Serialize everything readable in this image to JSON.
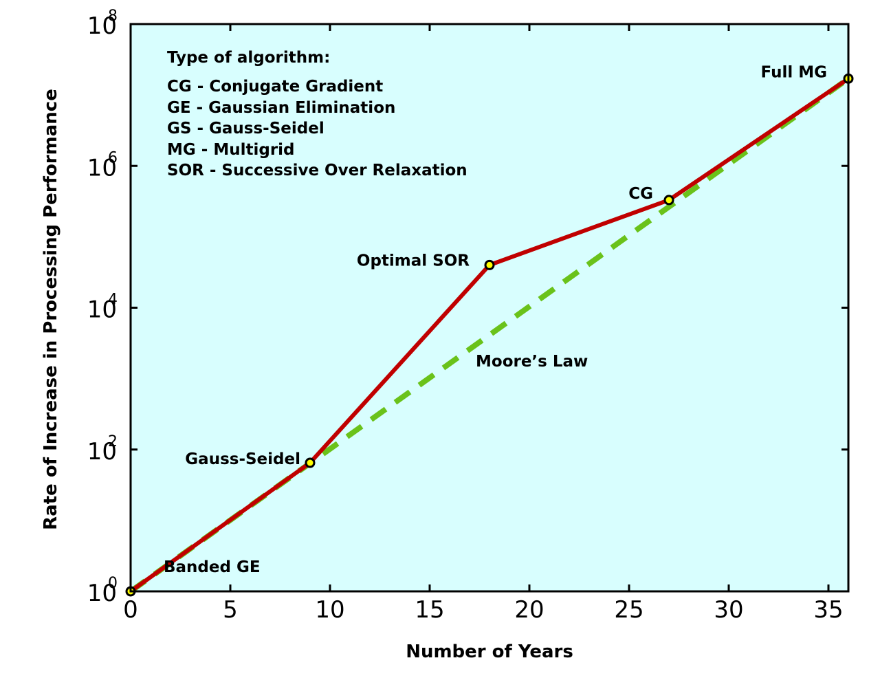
{
  "colors": {
    "plot_background": "#d8fefe",
    "algorithm_line": "#c00000",
    "moores_law_line": "#6ac21a",
    "marker_fill": "#ffff00",
    "marker_edge": "#000000"
  },
  "legend": {
    "heading": "Type of algorithm:",
    "entries": [
      "CG - Conjugate Gradient",
      "GE - Gaussian Elimination",
      "GS - Gauss-Seidel",
      "MG - Multigrid",
      "SOR - Successive Over Relaxation"
    ]
  },
  "chart_data": {
    "type": "line",
    "title": "",
    "xlabel": "Number of Years",
    "ylabel": "Rate of Increase in Processing Performance",
    "xlim": [
      0,
      36
    ],
    "ylim": [
      1,
      100000000
    ],
    "yscale": "log",
    "grid": false,
    "x_ticks": [
      0,
      5,
      10,
      15,
      20,
      25,
      30,
      35
    ],
    "x_tick_labels": [
      "0",
      "5",
      "10",
      "15",
      "20",
      "25",
      "30",
      "35"
    ],
    "y_ticks": [
      {
        "value": 1,
        "base": "10",
        "exponent": "0"
      },
      {
        "value": 100,
        "base": "10",
        "exponent": "2"
      },
      {
        "value": 10000,
        "base": "10",
        "exponent": "4"
      },
      {
        "value": 1000000,
        "base": "10",
        "exponent": "6"
      },
      {
        "value": 100000000,
        "base": "10",
        "exponent": "8"
      }
    ],
    "series": [
      {
        "x": [
          0,
          9,
          18,
          27,
          36
        ],
        "y": [
          1,
          65,
          40000,
          330000,
          17000000
        ],
        "point_labels": [
          "Banded GE",
          "Gauss-Seidel",
          "Optimal SOR",
          "CG",
          "Full MG"
        ]
      },
      {
        "x": [
          0,
          36
        ],
        "y": [
          1,
          17000000
        ],
        "line_label": "Moore’s Law"
      }
    ]
  }
}
